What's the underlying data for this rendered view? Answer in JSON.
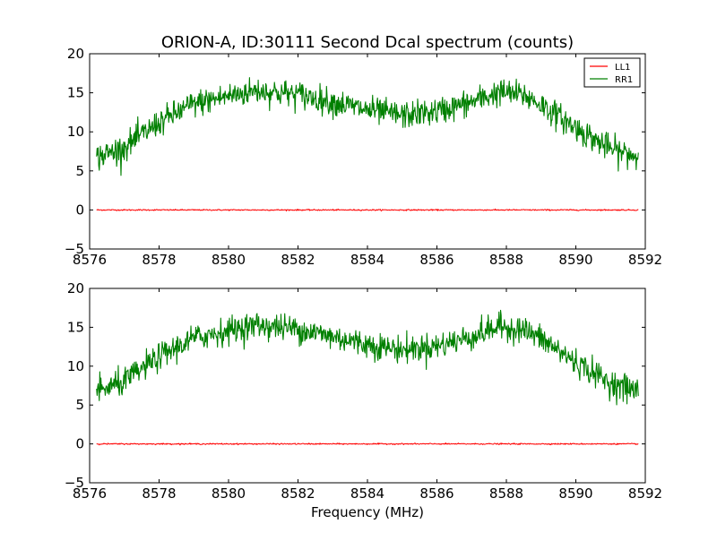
{
  "chart_data": {
    "type": "line",
    "title": "ORION-A, ID:30111 Second Dcal spectrum (counts)",
    "xlabel": "Frequency (MHz)",
    "ylabel": "",
    "xlim": [
      8576,
      8592
    ],
    "ylim": [
      -5,
      20
    ],
    "x_ticks": [
      "8576",
      "8578",
      "8580",
      "8582",
      "8584",
      "8586",
      "8588",
      "8590",
      "8592"
    ],
    "y_ticks": [
      "−5",
      "0",
      "5",
      "10",
      "15",
      "20"
    ],
    "legend": {
      "placement": "top-right",
      "in_panel": 0
    },
    "x_range_data": [
      8576.2,
      8591.8
    ],
    "panels": [
      {
        "series": [
          {
            "name": "LL1",
            "color": "#ff0000",
            "x": [
              8576.2,
              8591.8
            ],
            "values": [
              0.0,
              0.0
            ]
          },
          {
            "name": "RR1",
            "color": "#008000",
            "x": [
              8576.2,
              8577,
              8578,
              8579,
              8580,
              8580.8,
              8582,
              8583,
              8584,
              8585,
              8586,
              8587,
              8587.8,
              8588.5,
              8589,
              8590,
              8591,
              8591.8
            ],
            "values": [
              6.7,
              8.0,
              11.2,
              13.6,
              14.6,
              15.3,
              14.8,
              13.8,
              12.8,
              12.1,
              12.6,
              13.8,
              15.1,
              14.7,
              13.5,
              10.5,
              7.8,
              6.8
            ]
          }
        ]
      },
      {
        "series": [
          {
            "name": "LL1",
            "color": "#ff0000",
            "x": [
              8576.2,
              8591.8
            ],
            "values": [
              0.0,
              0.0
            ]
          },
          {
            "name": "RR1",
            "color": "#008000",
            "x": [
              8576.2,
              8577,
              8578,
              8579,
              8580,
              8580.8,
              8582,
              8583,
              8584,
              8585,
              8586,
              8587,
              8587.8,
              8588.5,
              8589,
              8590,
              8591,
              8591.8
            ],
            "values": [
              6.7,
              8.0,
              11.2,
              13.6,
              14.6,
              15.3,
              14.8,
              13.8,
              12.8,
              12.1,
              12.6,
              13.8,
              15.1,
              14.7,
              13.5,
              10.5,
              7.8,
              6.8
            ]
          }
        ]
      }
    ]
  }
}
